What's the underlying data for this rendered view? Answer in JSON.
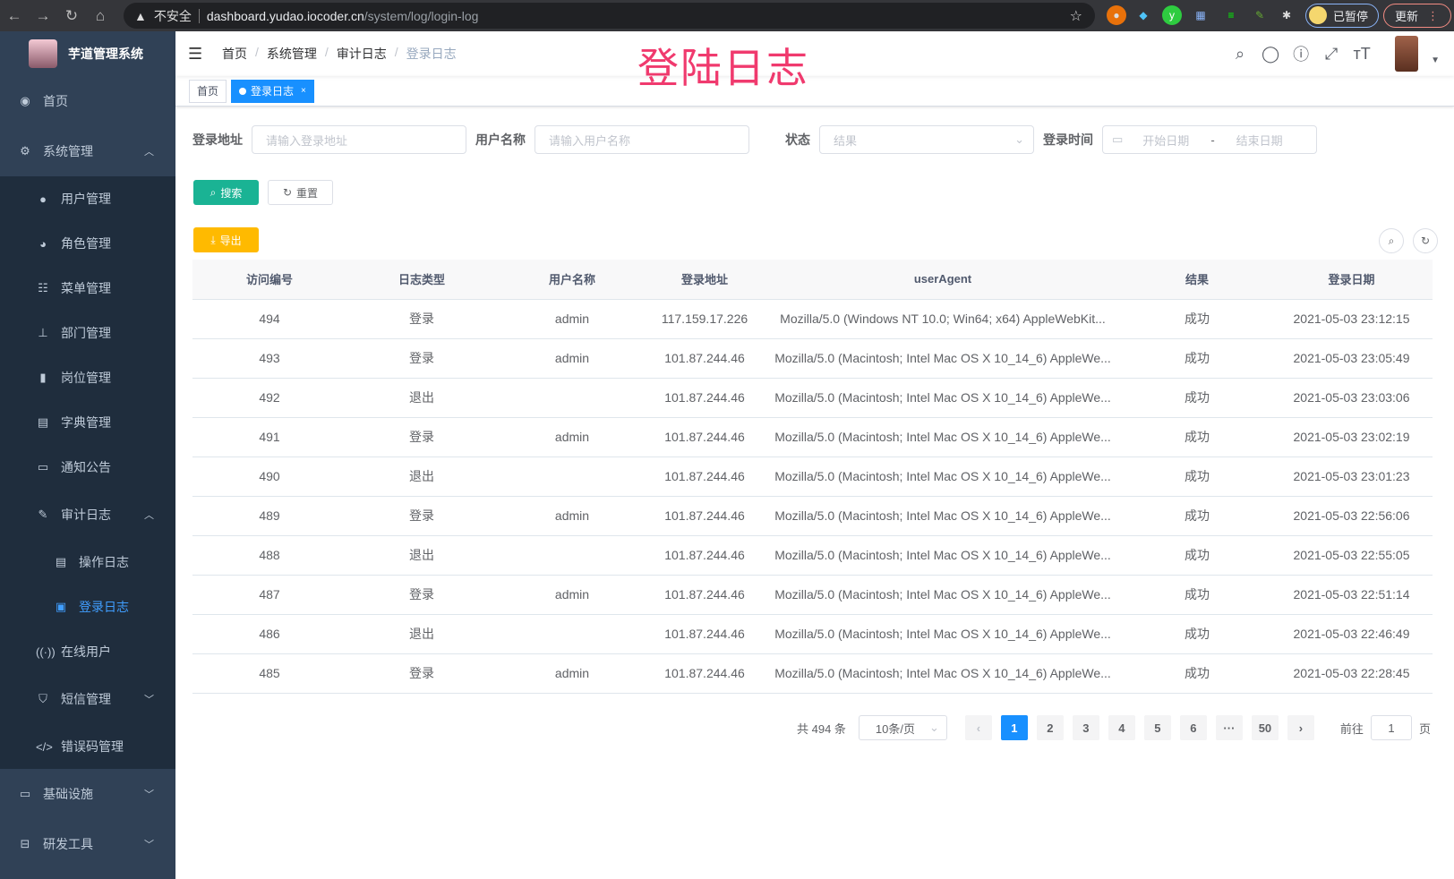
{
  "browser": {
    "insecure_label": "不安全",
    "url_host": "dashboard.yudao.iocoder.cn",
    "url_path": "/system/log/login-log",
    "paused_label": "已暂停",
    "update_label": "更新"
  },
  "overlay_title": "登陆日志",
  "sidebar": {
    "logo_title": "芋道管理系统",
    "items": [
      {
        "label": "首页",
        "icon": "dashboard-icon"
      },
      {
        "label": "系统管理",
        "icon": "gear-icon"
      },
      {
        "label": "用户管理",
        "icon": "user-icon"
      },
      {
        "label": "角色管理",
        "icon": "role-icon"
      },
      {
        "label": "菜单管理",
        "icon": "tree-table-icon"
      },
      {
        "label": "部门管理",
        "icon": "tree-icon"
      },
      {
        "label": "岗位管理",
        "icon": "post-icon"
      },
      {
        "label": "字典管理",
        "icon": "dict-icon"
      },
      {
        "label": "通知公告",
        "icon": "message-icon"
      },
      {
        "label": "审计日志",
        "icon": "log-icon"
      },
      {
        "label": "操作日志",
        "icon": "form-icon"
      },
      {
        "label": "登录日志",
        "icon": "logininfor-icon"
      },
      {
        "label": "在线用户",
        "icon": "online-icon"
      },
      {
        "label": "短信管理",
        "icon": "validcode-icon"
      },
      {
        "label": "错误码管理",
        "icon": "code-icon"
      },
      {
        "label": "基础设施",
        "icon": "monitor-icon"
      },
      {
        "label": "研发工具",
        "icon": "tool-icon"
      }
    ]
  },
  "breadcrumb": [
    "首页",
    "系统管理",
    "审计日志",
    "登录日志"
  ],
  "tags": {
    "home": "首页",
    "active": "登录日志"
  },
  "search": {
    "addr_label": "登录地址",
    "addr_placeholder": "请输入登录地址",
    "user_label": "用户名称",
    "user_placeholder": "请输入用户名称",
    "status_label": "状态",
    "status_placeholder": "结果",
    "time_label": "登录时间",
    "start_placeholder": "开始日期",
    "range_sep": "-",
    "end_placeholder": "结束日期",
    "search_btn": "搜索",
    "reset_btn": "重置",
    "export_btn": "导出"
  },
  "table": {
    "headers": [
      "访问编号",
      "日志类型",
      "用户名称",
      "登录地址",
      "userAgent",
      "结果",
      "登录日期"
    ],
    "rows": [
      [
        "494",
        "登录",
        "admin",
        "117.159.17.226",
        "Mozilla/5.0 (Windows NT 10.0; Win64; x64) AppleWebKit...",
        "成功",
        "2021-05-03 23:12:15"
      ],
      [
        "493",
        "登录",
        "admin",
        "101.87.244.46",
        "Mozilla/5.0 (Macintosh; Intel Mac OS X 10_14_6) AppleWe...",
        "成功",
        "2021-05-03 23:05:49"
      ],
      [
        "492",
        "退出",
        "",
        "101.87.244.46",
        "Mozilla/5.0 (Macintosh; Intel Mac OS X 10_14_6) AppleWe...",
        "成功",
        "2021-05-03 23:03:06"
      ],
      [
        "491",
        "登录",
        "admin",
        "101.87.244.46",
        "Mozilla/5.0 (Macintosh; Intel Mac OS X 10_14_6) AppleWe...",
        "成功",
        "2021-05-03 23:02:19"
      ],
      [
        "490",
        "退出",
        "",
        "101.87.244.46",
        "Mozilla/5.0 (Macintosh; Intel Mac OS X 10_14_6) AppleWe...",
        "成功",
        "2021-05-03 23:01:23"
      ],
      [
        "489",
        "登录",
        "admin",
        "101.87.244.46",
        "Mozilla/5.0 (Macintosh; Intel Mac OS X 10_14_6) AppleWe...",
        "成功",
        "2021-05-03 22:56:06"
      ],
      [
        "488",
        "退出",
        "",
        "101.87.244.46",
        "Mozilla/5.0 (Macintosh; Intel Mac OS X 10_14_6) AppleWe...",
        "成功",
        "2021-05-03 22:55:05"
      ],
      [
        "487",
        "登录",
        "admin",
        "101.87.244.46",
        "Mozilla/5.0 (Macintosh; Intel Mac OS X 10_14_6) AppleWe...",
        "成功",
        "2021-05-03 22:51:14"
      ],
      [
        "486",
        "退出",
        "",
        "101.87.244.46",
        "Mozilla/5.0 (Macintosh; Intel Mac OS X 10_14_6) AppleWe...",
        "成功",
        "2021-05-03 22:46:49"
      ],
      [
        "485",
        "登录",
        "admin",
        "101.87.244.46",
        "Mozilla/5.0 (Macintosh; Intel Mac OS X 10_14_6) AppleWe...",
        "成功",
        "2021-05-03 22:28:45"
      ]
    ]
  },
  "pagination": {
    "total": "共 494 条",
    "page_size": "10条/页",
    "pages": [
      "1",
      "2",
      "3",
      "4",
      "5",
      "6",
      "···",
      "50"
    ],
    "current": "1",
    "goto_label": "前往",
    "goto_value": "1",
    "goto_suffix": "页"
  },
  "colors": {
    "sidebar_bg": "#304156",
    "submenu_bg": "#1f2d3d",
    "accent": "#1890ff",
    "search_btn": "#1ab394",
    "export_btn": "#ffba00",
    "overlay_title": "#f03a6e"
  }
}
